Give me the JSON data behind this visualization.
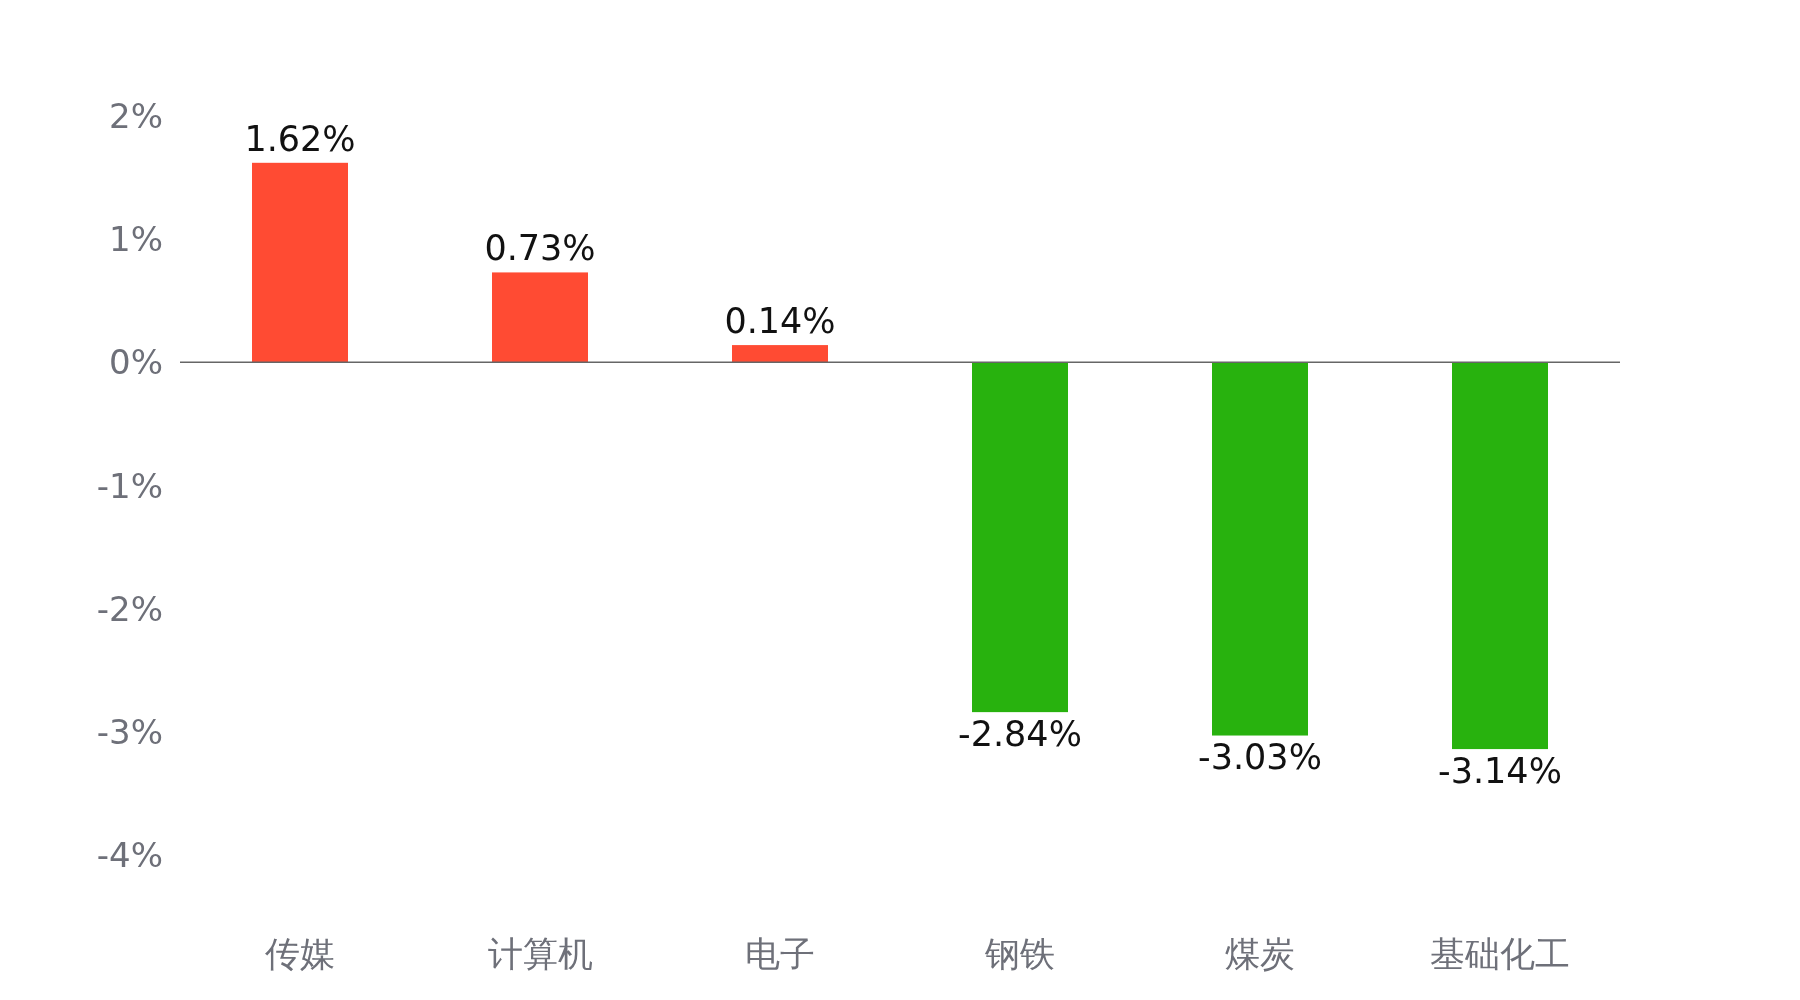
{
  "chart_data": {
    "type": "bar",
    "categories": [
      "传媒",
      "计算机",
      "电子",
      "钢铁",
      "煤炭",
      "基础化工"
    ],
    "values": [
      1.62,
      0.73,
      0.14,
      -2.84,
      -3.03,
      -3.14
    ],
    "colors": [
      "#ff4b33",
      "#ff4b33",
      "#ff4b33",
      "#28b20e",
      "#28b20e",
      "#28b20e"
    ],
    "value_labels": [
      "1.62%",
      "0.73%",
      "0.14%",
      "-2.84%",
      "-3.03%",
      "-3.14%"
    ],
    "ylim": [
      -4,
      2
    ],
    "yticks": [
      {
        "value": 2,
        "label": "2%"
      },
      {
        "value": 1,
        "label": "1%"
      },
      {
        "value": 0,
        "label": "0%"
      },
      {
        "value": -1,
        "label": "-1%"
      },
      {
        "value": -2,
        "label": "-2%"
      },
      {
        "value": -3,
        "label": "-3%"
      },
      {
        "value": -4,
        "label": "-4%"
      }
    ],
    "ref_lines": [
      {
        "axis": "y",
        "value": 0,
        "label": null,
        "color": "#666666",
        "line_style": "solid"
      }
    ],
    "grid": false
  }
}
